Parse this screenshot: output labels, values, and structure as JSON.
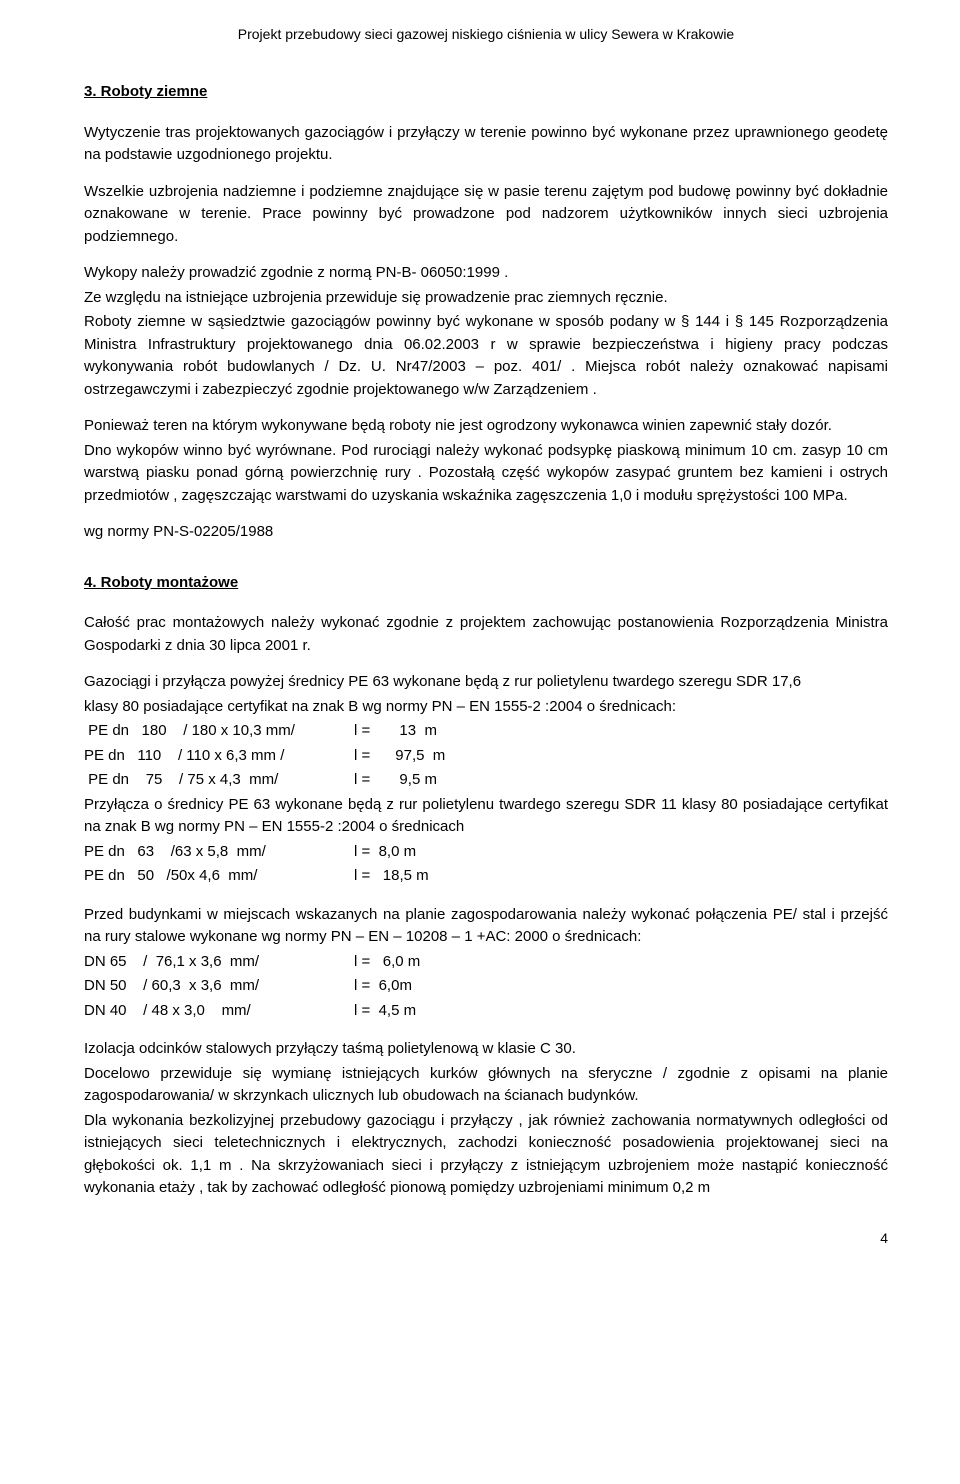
{
  "header": "Projekt przebudowy sieci gazowej niskiego ciśnienia w ulicy Sewera  w Krakowie",
  "section3": {
    "heading": "3.   Roboty ziemne",
    "p1": "Wytyczenie tras projektowanych  gazociągów i  przyłączy w terenie powinno być wykonane przez uprawnionego geodetę na podstawie uzgodnionego projektu.",
    "p2": " Wszelkie uzbrojenia nadziemne i podziemne znajdujące się w pasie terenu zajętym pod budowę powinny być dokładnie oznakowane w terenie. Prace powinny być prowadzone pod nadzorem użytkowników innych sieci uzbrojenia podziemnego.",
    "p3": " Wykopy należy prowadzić zgodnie z  normą PN-B- 06050:1999 .",
    "p4": " Ze względu na istniejące uzbrojenia przewiduje się prowadzenie prac ziemnych ręcznie.",
    "p5": " Roboty ziemne w sąsiedztwie gazociągów powinny być wykonane w sposób podany w § 144 i § 145 Rozporządzenia Ministra Infrastruktury projektowanego dnia 06.02.2003 r w sprawie bezpieczeństwa i higieny pracy podczas wykonywania robót budowlanych / Dz. U. Nr47/2003 – poz. 401/ . Miejsca  robót należy oznakować napisami ostrzegawczymi i zabezpieczyć zgodnie projektowanego w/w  Zarządzeniem .",
    "p6": "Ponieważ teren na którym wykonywane będą  roboty nie jest ogrodzony wykonawca winien zapewnić stały  dozór.",
    "p7": "Dno wykopów winno być wyrównane. Pod rurociągi należy wykonać podsypkę piaskową minimum 10 cm. zasyp 10 cm warstwą piasku ponad górną powierzchnię rury . Pozostałą część  wykopów   zasypać gruntem bez kamieni i ostrych przedmiotów , zagęszczając warstwami do uzyskania  wskaźnika  zagęszczenia 1,0 i modułu sprężystości  100 MPa.",
    "p8": "wg normy PN-S-02205/1988"
  },
  "section4": {
    "heading": "4.  Roboty montażowe",
    "p1": "Całość prac montażowych należy wykonać zgodnie z projektem zachowując postanowienia Rozporządzenia Ministra Gospodarki  z dnia 30 lipca 2001  r.",
    "p2": "Gazociągi i przyłącza   powyżej średnicy PE 63  wykonane będą  z rur polietylenu twardego szeregu SDR 17,6",
    "p3": " klasy 80 posiadające certyfikat na znak B wg normy PN – EN 1555-2 :2004  o średnicach:",
    "pipes_a": [
      {
        "c1": " PE dn   180    / 180 x 10,3 mm/",
        "c2": "l =       13  m"
      },
      {
        "c1": "PE dn   110    / 110 x 6,3 mm /",
        "c2": "l =      97,5  m"
      },
      {
        "c1": " PE dn    75    / 75 x 4,3  mm/",
        "c2": "l =       9,5 m"
      }
    ],
    "p4": "Przyłącza o średnicy PE 63   wykonane będą  z rur polietylenu twardego szeregu SDR 11 klasy 80 posiadające certyfikat na znak B wg normy PN – EN 1555-2 :2004  o średnicach",
    "pipes_b": [
      {
        "c1": "PE dn   63    /63 x 5,8  mm/",
        "c2": "l =  8,0 m"
      },
      {
        "c1": "PE dn   50   /50x 4,6  mm/",
        "c2": "l =   18,5 m"
      }
    ],
    "p5": " Przed budynkami w miejscach wskazanych na planie zagospodarowania należy wykonać połączenia PE/ stal  i  przejść na rury stalowe wykonane wg normy PN – EN – 10208 – 1 +AC: 2000 o średnicach:",
    "pipes_c": [
      {
        "c1": "DN 65    /  76,1 x 3,6  mm/",
        "c2": "l =   6,0 m"
      },
      {
        "c1": "DN 50    / 60,3  x 3,6  mm/",
        "c2": "l =  6,0m"
      },
      {
        "c1": "DN 40    / 48 x 3,0    mm/",
        "c2": "l =  4,5 m"
      }
    ],
    "p6": " Izolacja odcinków stalowych przyłączy  taśmą  polietylenową w klasie C 30.",
    "p7": "  Docelowo przewiduje się  wymianę istniejących  kurków głównych na sferyczne / zgodnie z opisami  na planie zagospodarowania/ w skrzynkach ulicznych lub  obudowach na ścianach budynków.",
    "p8": "Dla wykonania bezkolizyjnej przebudowy gazociągu i przyłączy , jak również zachowania normatywnych odległości od istniejących sieci teletechnicznych i elektrycznych, zachodzi konieczność  posadowienia projektowanej sieci na głębokości ok.  1,1  m . Na skrzyżowaniach  sieci i przyłączy z istniejącym uzbrojeniem  może nastąpić konieczność wykonania etaży , tak by zachować odległość pionową pomiędzy uzbrojeniami minimum 0,2 m"
  },
  "page_number": "4"
}
